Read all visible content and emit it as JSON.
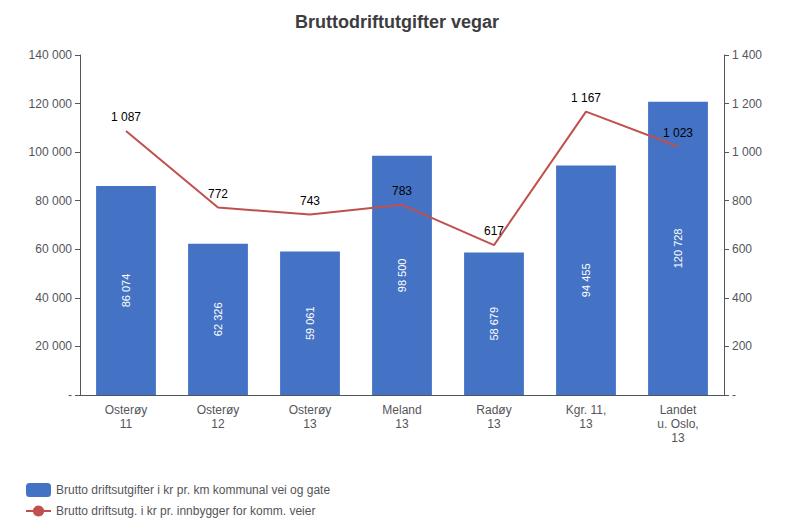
{
  "chart_data": {
    "type": "bar",
    "title": "Bruttodriftutgifter vegar",
    "categories": [
      "Osterøy\n11",
      "Osterøy\n12",
      "Osterøy\n13",
      "Meland\n13",
      "Radøy\n13",
      "Kgr. 11,\n13",
      "Landet\nu. Oslo,\n13"
    ],
    "series": [
      {
        "name": "Brutto driftsutgifter i kr pr. km kommunal vei og gate",
        "type": "bar",
        "color": "#4472C4",
        "values": [
          86074,
          62326,
          59061,
          98500,
          58679,
          94455,
          120728
        ],
        "value_labels": [
          "86 074",
          "62 326",
          "59 061",
          "98 500",
          "58 679",
          "94 455",
          "120 728"
        ],
        "data_labels": true
      },
      {
        "name": "Brutto driftsutg. i kr pr. innbygger for komm. veier",
        "type": "line",
        "color": "#C0504D",
        "axis": "y2",
        "values": [
          1087,
          772,
          743,
          783,
          617,
          1167,
          1023
        ],
        "value_labels": [
          "1 087",
          "772",
          "743",
          "783",
          "617",
          "1 167",
          "1 023"
        ],
        "data_labels": true
      }
    ],
    "ylim": [
      0,
      140000
    ],
    "yticks": [
      {
        "value": 0,
        "label": "-"
      },
      {
        "value": 20000,
        "label": "20 000"
      },
      {
        "value": 40000,
        "label": "40 000"
      },
      {
        "value": 60000,
        "label": "60 000"
      },
      {
        "value": 80000,
        "label": "80 000"
      },
      {
        "value": 100000,
        "label": "100 000"
      },
      {
        "value": 120000,
        "label": "120 000"
      },
      {
        "value": 140000,
        "label": "140 000"
      }
    ],
    "y2lim": [
      0,
      1400
    ],
    "y2ticks": [
      {
        "value": 0,
        "label": "-"
      },
      200,
      400,
      600,
      800,
      {
        "value": 1000,
        "label": "1 000"
      },
      {
        "value": 1200,
        "label": "1 200"
      },
      {
        "value": 1400,
        "label": "1 400"
      }
    ],
    "grid": false,
    "legend": "lower left"
  }
}
